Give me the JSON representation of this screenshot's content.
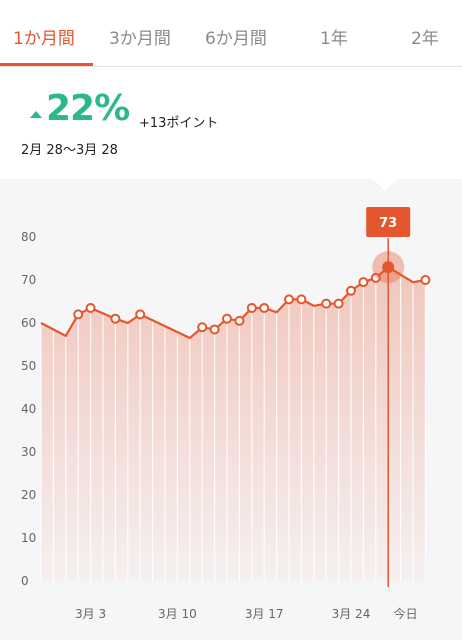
{
  "tabs": [
    {
      "label": "1か月間",
      "active": true
    },
    {
      "label": "3か月間",
      "active": false
    },
    {
      "label": "6か月間",
      "active": false
    },
    {
      "label": "1年",
      "active": false
    },
    {
      "label": "2年",
      "active": false
    }
  ],
  "summary": {
    "trend_icon": "up-triangle-icon",
    "percent": "22%",
    "points_change": "+13ポイント",
    "date_range": "2月 28〜3月 28"
  },
  "colors": {
    "accent": "#e4572e",
    "positive": "#2bb88a"
  },
  "chart_data": {
    "type": "line",
    "ylim": [
      0,
      80
    ],
    "yticks": [
      "0",
      "10",
      "20",
      "30",
      "40",
      "50",
      "60",
      "70",
      "80"
    ],
    "xticks": [
      {
        "label": "3月 3",
        "x": 4
      },
      {
        "label": "3月 10",
        "x": 11
      },
      {
        "label": "3月 17",
        "x": 18
      },
      {
        "label": "3月 24",
        "x": 25
      },
      {
        "label": "今日",
        "x": 29
      }
    ],
    "points": [
      {
        "x": 0,
        "y": 60,
        "marker": false
      },
      {
        "x": 2,
        "y": 57,
        "marker": false
      },
      {
        "x": 3,
        "y": 62,
        "marker": true
      },
      {
        "x": 4,
        "y": 63.5,
        "marker": true
      },
      {
        "x": 6,
        "y": 61,
        "marker": true
      },
      {
        "x": 7,
        "y": 60,
        "marker": false
      },
      {
        "x": 8,
        "y": 62,
        "marker": true
      },
      {
        "x": 12,
        "y": 56.5,
        "marker": false
      },
      {
        "x": 13,
        "y": 59,
        "marker": true
      },
      {
        "x": 14,
        "y": 58.5,
        "marker": true
      },
      {
        "x": 15,
        "y": 61,
        "marker": true
      },
      {
        "x": 16,
        "y": 60.5,
        "marker": true
      },
      {
        "x": 17,
        "y": 63.5,
        "marker": true
      },
      {
        "x": 18,
        "y": 63.5,
        "marker": true
      },
      {
        "x": 19,
        "y": 62.5,
        "marker": false
      },
      {
        "x": 20,
        "y": 65.5,
        "marker": true
      },
      {
        "x": 21,
        "y": 65.5,
        "marker": true
      },
      {
        "x": 22,
        "y": 64,
        "marker": false
      },
      {
        "x": 23,
        "y": 64.5,
        "marker": true
      },
      {
        "x": 24,
        "y": 64.5,
        "marker": true
      },
      {
        "x": 25,
        "y": 67.5,
        "marker": true
      },
      {
        "x": 26,
        "y": 69.5,
        "marker": true
      },
      {
        "x": 27,
        "y": 70.5,
        "marker": true
      },
      {
        "x": 28,
        "y": 73,
        "marker": true,
        "highlight": true
      },
      {
        "x": 30,
        "y": 69.5,
        "marker": false
      },
      {
        "x": 31,
        "y": 70,
        "marker": true
      }
    ],
    "highlight_value": "73"
  }
}
